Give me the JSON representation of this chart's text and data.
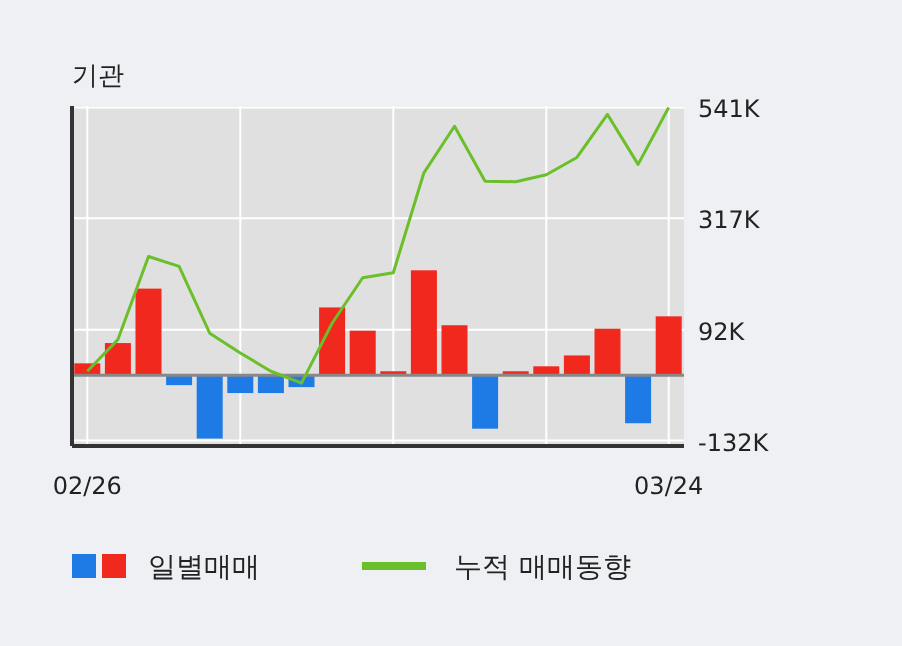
{
  "chart_data": {
    "type": "bar",
    "title": "기관",
    "categories": [
      "02/26",
      null,
      null,
      null,
      null,
      null,
      null,
      null,
      null,
      null,
      null,
      null,
      null,
      null,
      null,
      null,
      null,
      null,
      null,
      "03/24"
    ],
    "series": [
      {
        "name": "일별매매",
        "colors": [
          "#f0281e",
          "#f0281e",
          "#f0281e",
          "#1e7be6",
          "#1e7be6",
          "#1e7be6",
          "#1e7be6",
          "#1e7be6",
          "#f0281e",
          "#f0281e",
          "#f0281e",
          "#f0281e",
          "#f0281e",
          "#1e7be6",
          "#f0281e",
          "#f0281e",
          "#f0281e",
          "#f0281e",
          "#1e7be6",
          "#f0281e"
        ],
        "values": [
          24,
          65,
          175,
          -20,
          -128,
          -36,
          -36,
          -24,
          137,
          90,
          8,
          212,
          101,
          -108,
          8,
          18,
          40,
          94,
          -97,
          119
        ]
      },
      {
        "name": "누적 매매동향",
        "type": "line",
        "color": "#6abf2a",
        "values": [
          8,
          72,
          240,
          220,
          85,
          45,
          8,
          -16,
          105,
          197,
          207,
          409,
          503,
          392,
          391,
          405,
          440,
          527,
          426,
          541
        ]
      }
    ],
    "ylim": [
      -143,
      544
    ],
    "yticks": [
      {
        "value": 541,
        "label": "541K"
      },
      {
        "value": 317,
        "label": "317K"
      },
      {
        "value": 92,
        "label": "92K"
      },
      {
        "value": -132,
        "label": "-132K"
      }
    ],
    "grid": true,
    "legend": "bottom"
  }
}
